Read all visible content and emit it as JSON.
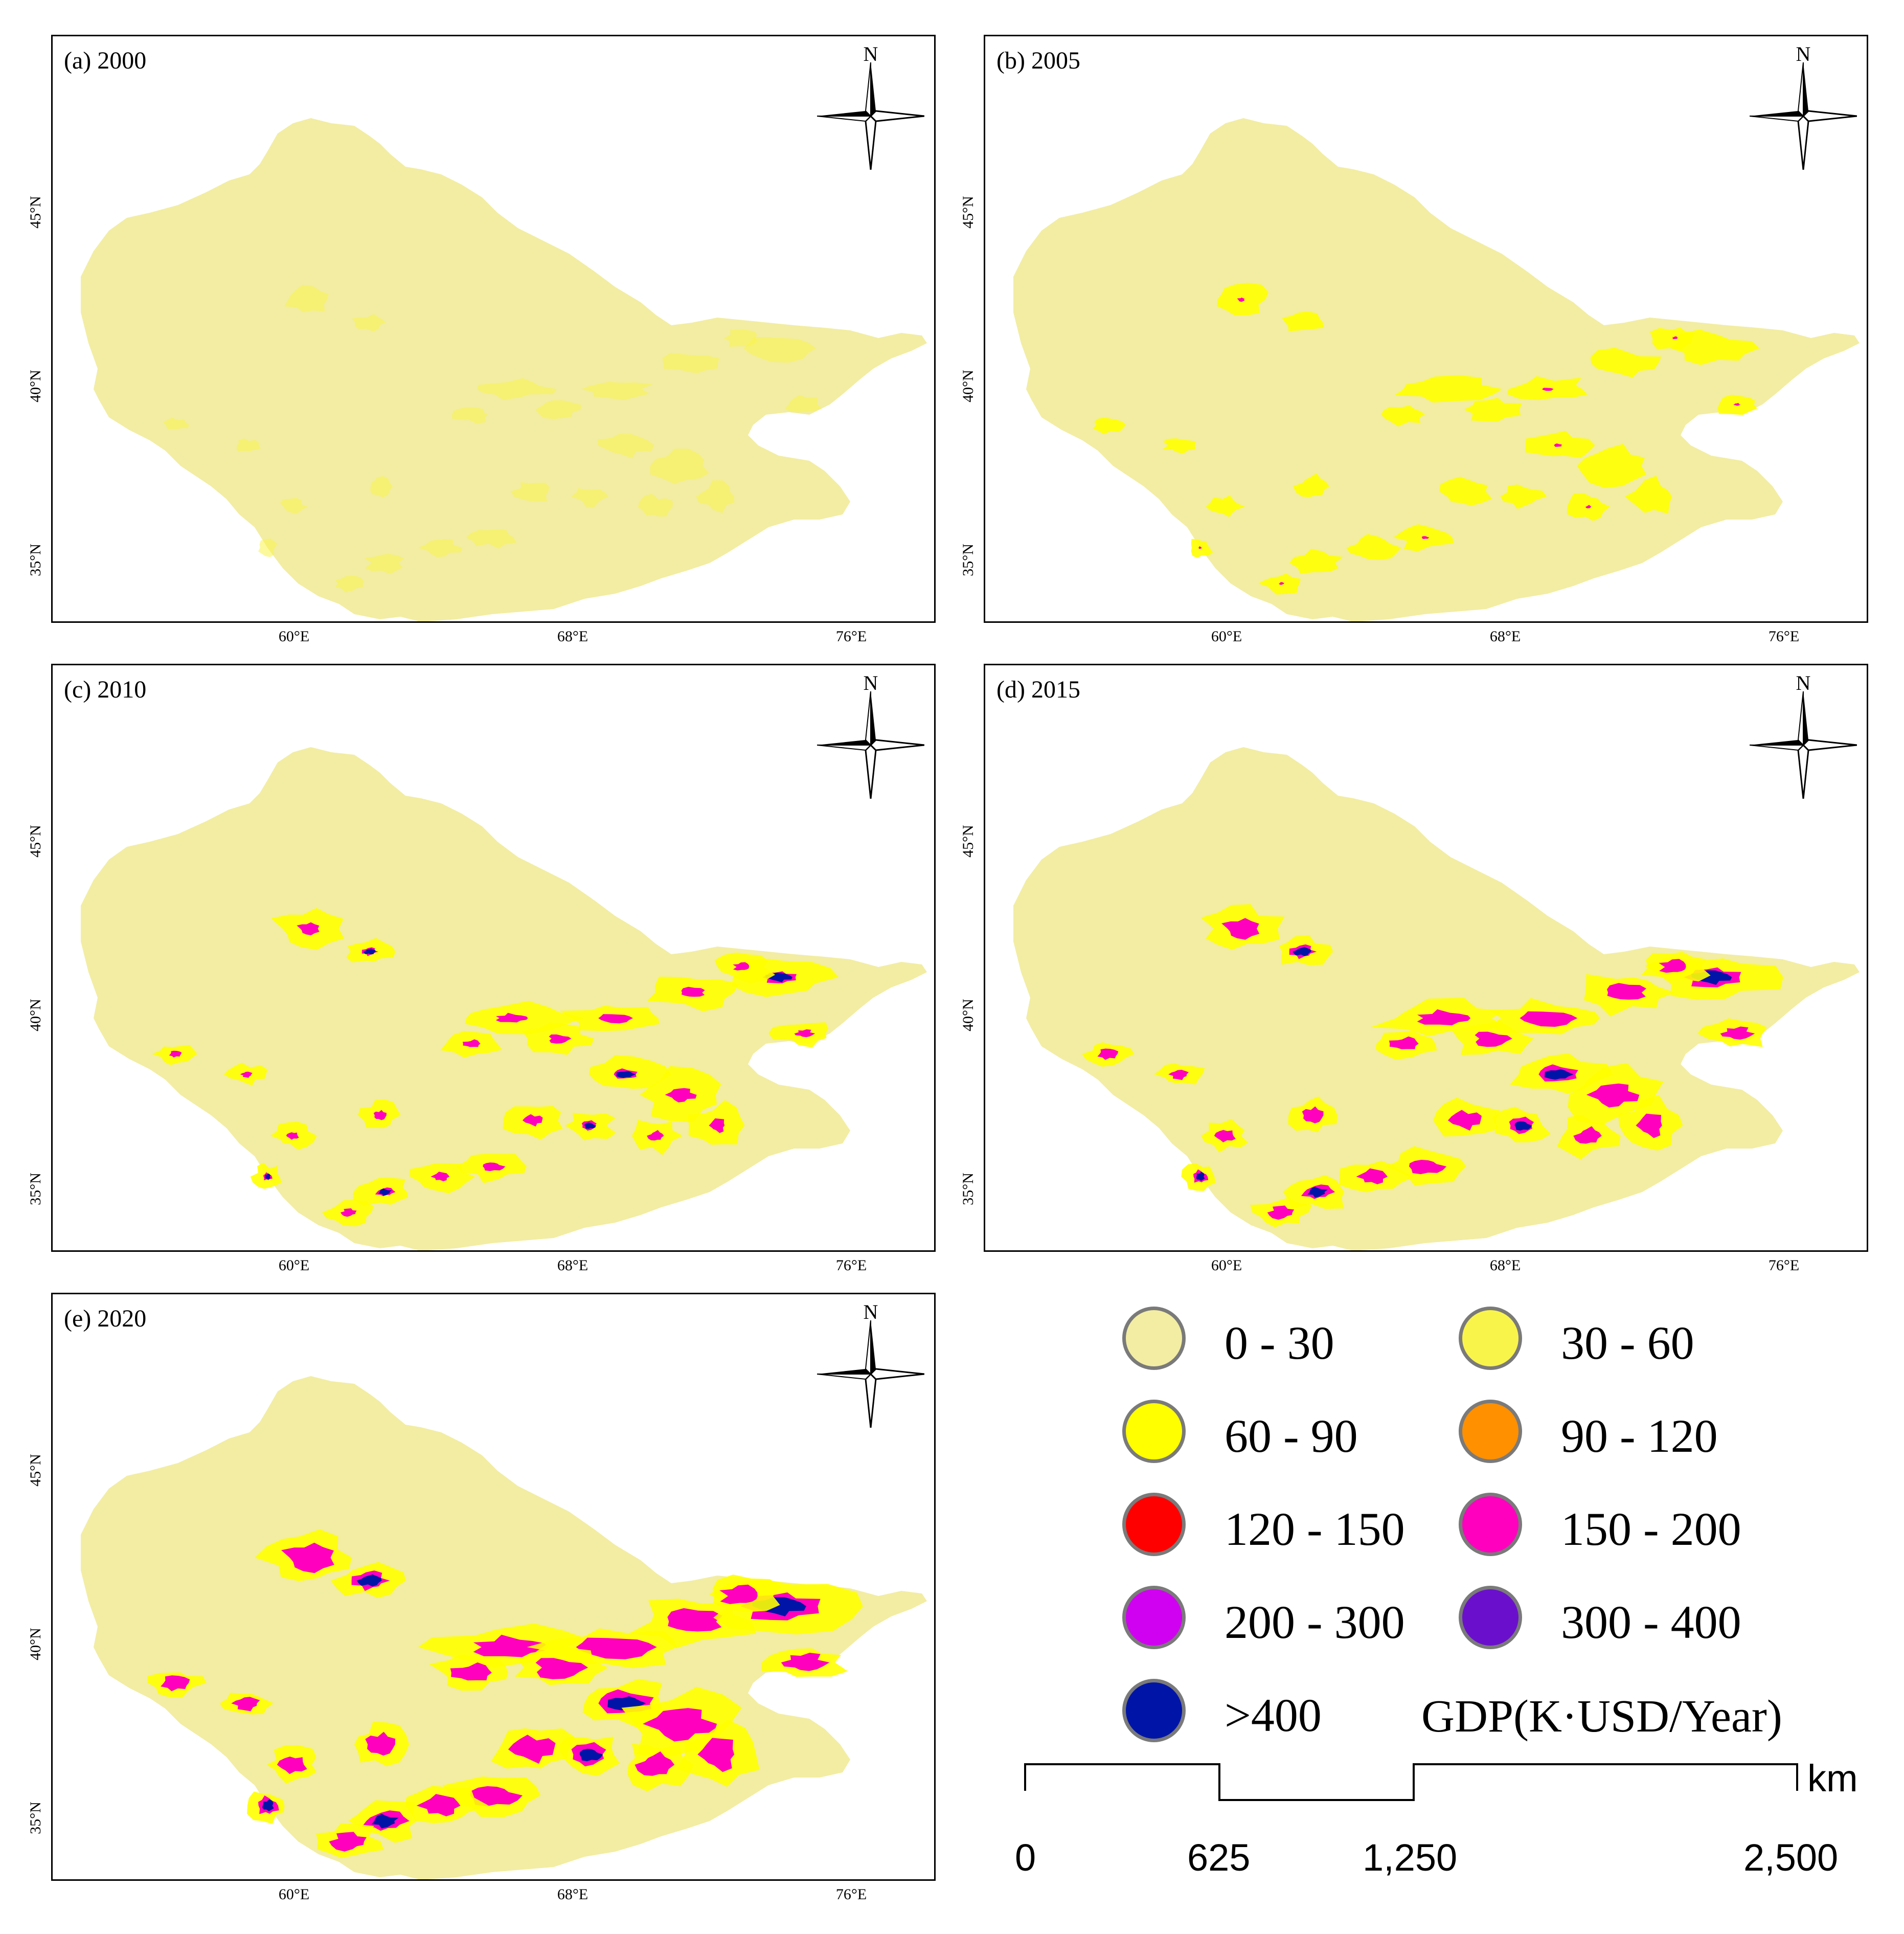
{
  "panels": [
    {
      "title": "(a) 2000",
      "y_ticks": [
        "45°N",
        "40°N",
        "35°N"
      ],
      "x_ticks": [
        "60°E",
        "68°E",
        "76°E"
      ],
      "north_label": "N"
    },
    {
      "title": "(b) 2005",
      "y_ticks": [
        "45°N",
        "40°N",
        "35°N"
      ],
      "x_ticks": [
        "60°E",
        "68°E",
        "76°E"
      ],
      "north_label": "N"
    },
    {
      "title": "(c) 2010",
      "y_ticks": [
        "45°N",
        "40°N",
        "35°N"
      ],
      "x_ticks": [
        "60°E",
        "68°E",
        "76°E"
      ],
      "north_label": "N"
    },
    {
      "title": "(d) 2015",
      "y_ticks": [
        "45°N",
        "40°N",
        "35°N"
      ],
      "x_ticks": [
        "60°E",
        "68°E",
        "76°E"
      ],
      "north_label": "N"
    },
    {
      "title": "(e) 2020",
      "y_ticks": [
        "45°N",
        "40°N",
        "35°N"
      ],
      "x_ticks": [
        "60°E",
        "68°E",
        "76°E"
      ],
      "north_label": "N"
    }
  ],
  "legend": {
    "title": "GDP(K·USD/Year)",
    "items": [
      {
        "label": "0 - 30",
        "color": "#F2EDA2"
      },
      {
        "label": "30 - 60",
        "color": "#F9F44A"
      },
      {
        "label": "60 - 90",
        "color": "#FFFF00"
      },
      {
        "label": "90 - 120",
        "color": "#FF9000"
      },
      {
        "label": "120 - 150",
        "color": "#FF0000"
      },
      {
        "label": "150 - 200",
        "color": "#FF00BE"
      },
      {
        "label": "200 - 300",
        "color": "#D000F0"
      },
      {
        "label": "300 - 400",
        "color": "#6A10CC"
      },
      {
        "label": ">400",
        "color": "#0014A8"
      }
    ]
  },
  "scale_bar": {
    "unit": "km",
    "labels": [
      "0",
      "625",
      "1,250",
      "2,500"
    ]
  },
  "colors": {
    "base": "#F2EDA2",
    "yellow": "#FFFF00",
    "magenta": "#FF00BE",
    "blue": "#0014A8"
  }
}
